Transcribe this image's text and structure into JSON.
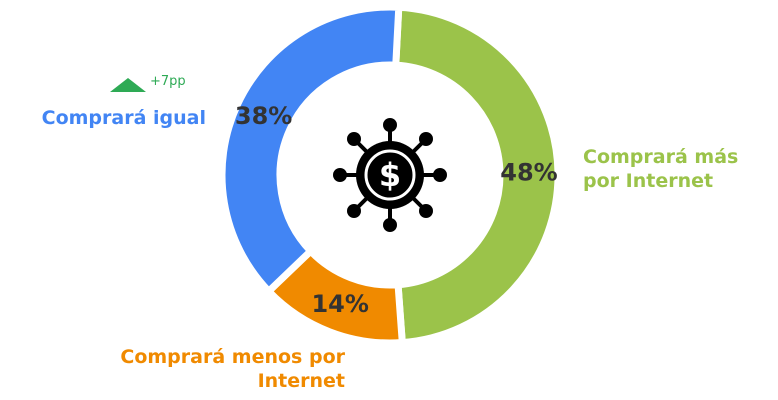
{
  "chart_data": {
    "type": "pie",
    "categories": [
      "Comprará más por Internet",
      "Comprará menos por Internet",
      "Comprará igual"
    ],
    "values": [
      48,
      14,
      38
    ],
    "value_labels": [
      "48%",
      "14%",
      "38%"
    ],
    "colors": [
      "#9bc34a",
      "#f08a00",
      "#4285f4"
    ],
    "annotations": [
      "+7pp"
    ]
  }
}
